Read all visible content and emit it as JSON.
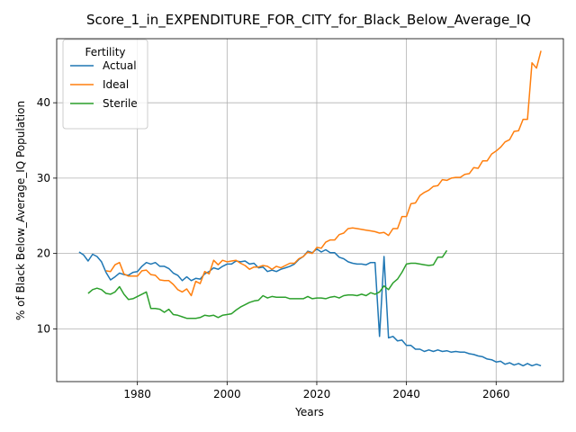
{
  "chart_data": {
    "type": "line",
    "title": "Score_1_in_EXPENDITURE_FOR_CITY_for_Black_Below_Average_IQ",
    "xlabel": "Years",
    "ylabel": "% of Black Below_Average_IQ Population",
    "xlim": [
      1962,
      2075
    ],
    "ylim": [
      3.0,
      48.5
    ],
    "xticks": [
      1980,
      2000,
      2020,
      2040,
      2060
    ],
    "yticks": [
      10,
      20,
      30,
      40
    ],
    "grid": true,
    "legend": {
      "title": "Fertility",
      "placement": "top-left"
    },
    "series": [
      {
        "name": "Actual",
        "color": "#1f77b4",
        "x": [
          1967,
          1968,
          1969,
          1970,
          1971,
          1972,
          1973,
          1974,
          1975,
          1976,
          1977,
          1978,
          1979,
          1980,
          1981,
          1982,
          1983,
          1984,
          1985,
          1986,
          1987,
          1988,
          1989,
          1990,
          1991,
          1992,
          1993,
          1994,
          1995,
          1996,
          1997,
          1998,
          1999,
          2000,
          2001,
          2002,
          2003,
          2004,
          2005,
          2006,
          2007,
          2008,
          2009,
          2010,
          2011,
          2012,
          2013,
          2014,
          2015,
          2016,
          2017,
          2018,
          2019,
          2020,
          2021,
          2022,
          2023,
          2024,
          2025,
          2026,
          2027,
          2028,
          2029,
          2030,
          2031,
          2032,
          2033,
          2034,
          2035,
          2036,
          2037,
          2038,
          2039,
          2040,
          2041,
          2042,
          2043,
          2044,
          2045,
          2046,
          2047,
          2048,
          2049,
          2050,
          2051,
          2052,
          2053,
          2054,
          2055,
          2056,
          2057,
          2058,
          2059,
          2060,
          2061,
          2062,
          2063,
          2064,
          2065,
          2066,
          2067,
          2068,
          2069,
          2070
        ],
        "y": [
          20.2,
          19.8,
          19.0,
          19.9,
          19.6,
          18.9,
          17.5,
          16.5,
          16.9,
          17.4,
          17.2,
          17.1,
          17.5,
          17.6,
          18.3,
          18.8,
          18.6,
          18.8,
          18.3,
          18.3,
          18.0,
          17.4,
          17.1,
          16.4,
          16.9,
          16.4,
          16.7,
          16.6,
          17.3,
          17.6,
          18.1,
          17.9,
          18.3,
          18.6,
          18.6,
          19.0,
          18.9,
          19.0,
          18.6,
          18.7,
          18.1,
          18.2,
          17.6,
          17.8,
          17.6,
          17.9,
          18.1,
          18.3,
          18.6,
          19.2,
          19.6,
          20.3,
          20.1,
          20.6,
          20.2,
          20.5,
          20.1,
          20.1,
          19.5,
          19.3,
          18.9,
          18.7,
          18.6,
          18.6,
          18.5,
          18.8,
          18.8,
          9.0,
          19.6,
          8.8,
          9.0,
          8.4,
          8.5,
          7.8,
          7.8,
          7.3,
          7.3,
          7.0,
          7.2,
          7.0,
          7.2,
          7.0,
          7.1,
          6.9,
          7.0,
          6.9,
          6.9,
          6.7,
          6.6,
          6.4,
          6.3,
          6.0,
          5.9,
          5.6,
          5.7,
          5.3,
          5.5,
          5.2,
          5.4,
          5.1,
          5.4,
          5.1,
          5.3,
          5.1
        ]
      },
      {
        "name": "Ideal",
        "color": "#ff7f0e",
        "x": [
          1973,
          1974,
          1975,
          1976,
          1977,
          1978,
          1979,
          1980,
          1981,
          1982,
          1983,
          1984,
          1985,
          1986,
          1987,
          1988,
          1989,
          1990,
          1991,
          1992,
          1993,
          1994,
          1995,
          1996,
          1997,
          1998,
          1999,
          2000,
          2001,
          2002,
          2003,
          2004,
          2005,
          2006,
          2007,
          2008,
          2009,
          2010,
          2011,
          2012,
          2013,
          2014,
          2015,
          2016,
          2017,
          2018,
          2019,
          2020,
          2021,
          2022,
          2023,
          2024,
          2025,
          2026,
          2027,
          2028,
          2029,
          2030,
          2031,
          2032,
          2033,
          2034,
          2035,
          2036,
          2037,
          2038,
          2039,
          2040,
          2041,
          2042,
          2043,
          2044,
          2045,
          2046,
          2047,
          2048,
          2049,
          2050,
          2051,
          2052,
          2053,
          2054,
          2055,
          2056,
          2057,
          2058,
          2059,
          2060,
          2061,
          2062,
          2063,
          2064,
          2065,
          2066,
          2067,
          2068,
          2069,
          2070
        ],
        "y": [
          17.7,
          17.6,
          18.5,
          18.8,
          17.3,
          17.0,
          17.0,
          17.0,
          17.7,
          17.8,
          17.2,
          17.1,
          16.5,
          16.4,
          16.4,
          15.9,
          15.2,
          14.9,
          15.3,
          14.4,
          16.3,
          16.0,
          17.6,
          17.3,
          19.1,
          18.5,
          19.1,
          18.9,
          19.0,
          19.1,
          18.7,
          18.4,
          17.9,
          18.2,
          18.2,
          18.4,
          18.3,
          17.9,
          18.3,
          18.1,
          18.4,
          18.7,
          18.7,
          19.3,
          19.6,
          20.2,
          20.0,
          20.8,
          20.7,
          21.5,
          21.8,
          21.8,
          22.5,
          22.7,
          23.3,
          23.4,
          23.3,
          23.2,
          23.1,
          23.0,
          22.9,
          22.7,
          22.8,
          22.4,
          23.3,
          23.3,
          24.9,
          24.9,
          26.6,
          26.7,
          27.7,
          28.1,
          28.4,
          28.9,
          29.0,
          29.8,
          29.7,
          30.0,
          30.1,
          30.1,
          30.5,
          30.6,
          31.4,
          31.3,
          32.3,
          32.3,
          33.2,
          33.6,
          34.1,
          34.8,
          35.1,
          36.2,
          36.3,
          37.8,
          37.8,
          45.3,
          44.6,
          46.9
        ]
      },
      {
        "name": "Sterile",
        "color": "#2ca02c",
        "x": [
          1969,
          1970,
          1971,
          1972,
          1973,
          1974,
          1975,
          1976,
          1977,
          1978,
          1979,
          1980,
          1981,
          1982,
          1983,
          1984,
          1985,
          1986,
          1987,
          1988,
          1989,
          1990,
          1991,
          1992,
          1993,
          1994,
          1995,
          1996,
          1997,
          1998,
          1999,
          2000,
          2001,
          2002,
          2003,
          2004,
          2005,
          2006,
          2007,
          2008,
          2009,
          2010,
          2011,
          2012,
          2013,
          2014,
          2015,
          2016,
          2017,
          2018,
          2019,
          2020,
          2021,
          2022,
          2023,
          2024,
          2025,
          2026,
          2027,
          2028,
          2029,
          2030,
          2031,
          2032,
          2033,
          2034,
          2035,
          2036,
          2037,
          2038,
          2039,
          2040,
          2041,
          2042,
          2043,
          2044,
          2045,
          2046,
          2047,
          2048,
          2049
        ],
        "y": [
          14.7,
          15.2,
          15.4,
          15.2,
          14.7,
          14.6,
          14.9,
          15.6,
          14.6,
          13.9,
          14.0,
          14.3,
          14.6,
          14.9,
          12.7,
          12.7,
          12.6,
          12.2,
          12.6,
          11.9,
          11.8,
          11.6,
          11.4,
          11.4,
          11.4,
          11.5,
          11.8,
          11.7,
          11.8,
          11.5,
          11.8,
          11.9,
          12.0,
          12.5,
          12.9,
          13.2,
          13.5,
          13.7,
          13.8,
          14.4,
          14.1,
          14.3,
          14.2,
          14.2,
          14.2,
          14.0,
          14.0,
          14.0,
          14.0,
          14.3,
          14.0,
          14.1,
          14.1,
          14.0,
          14.2,
          14.3,
          14.1,
          14.4,
          14.5,
          14.5,
          14.4,
          14.6,
          14.4,
          14.8,
          14.6,
          14.9,
          15.7,
          15.2,
          16.1,
          16.6,
          17.5,
          18.6,
          18.7,
          18.7,
          18.6,
          18.5,
          18.4,
          18.5,
          19.5,
          19.5,
          20.4
        ]
      }
    ]
  }
}
